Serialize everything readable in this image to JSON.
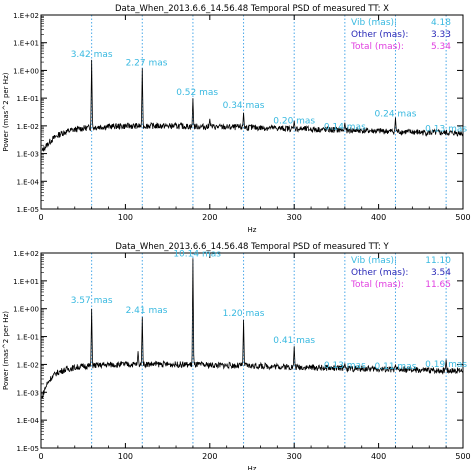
{
  "chart_data": [
    {
      "type": "line",
      "title": "Data_When_2013.6.6_14.56.48 Temporal PSD of measured TT: X",
      "xlabel": "Hz",
      "ylabel": "Power (mas^2 per Hz)",
      "xlim": [
        0,
        500
      ],
      "ylim": [
        1e-05,
        100
      ],
      "yscale": "log",
      "xticks": [
        0,
        100,
        200,
        300,
        400,
        500
      ],
      "xtick_labels": [
        "0",
        "100",
        "200",
        "300",
        "400",
        "500"
      ],
      "yticks": [
        1e-05,
        0.0001,
        0.001,
        0.01,
        0.1,
        1,
        10,
        100
      ],
      "ytick_labels": [
        "1.E-05",
        "1.E-04",
        "1.E-03",
        "1.E-02",
        "1.E-01",
        "1.E+00",
        "1.E+01",
        "1.E+02"
      ],
      "vlines": [
        60,
        120,
        180,
        240,
        300,
        360,
        420,
        480
      ],
      "series": [
        {
          "color": "#000000",
          "baseline": [
            [
              1,
              0.0012
            ],
            [
              4,
              0.0016
            ],
            [
              8,
              0.0022
            ],
            [
              12,
              0.003
            ],
            [
              18,
              0.0042
            ],
            [
              25,
              0.0055
            ],
            [
              35,
              0.0068
            ],
            [
              45,
              0.0078
            ],
            [
              55,
              0.0085
            ],
            [
              65,
              0.009
            ],
            [
              80,
              0.0095
            ],
            [
              100,
              0.0098
            ],
            [
              130,
              0.01
            ],
            [
              160,
              0.0098
            ],
            [
              200,
              0.0092
            ],
            [
              240,
              0.0088
            ],
            [
              280,
              0.0082
            ],
            [
              320,
              0.0075
            ],
            [
              360,
              0.007
            ],
            [
              400,
              0.0065
            ],
            [
              450,
              0.0058
            ],
            [
              500,
              0.0055
            ]
          ],
          "peaks": [
            [
              60,
              2.4
            ],
            [
              120,
              1.2
            ],
            [
              180,
              0.1
            ],
            [
              200,
              0.018
            ],
            [
              240,
              0.03
            ],
            [
              300,
              0.015
            ],
            [
              360,
              0.013
            ],
            [
              420,
              0.02
            ]
          ]
        }
      ],
      "annotations": [
        {
          "text": "3.42 mas",
          "x": 60,
          "y": 3.0
        },
        {
          "text": "2.27 mas",
          "x": 125,
          "y": 1.5
        },
        {
          "text": "0.52 mas",
          "x": 185,
          "y": 0.13
        },
        {
          "text": "0.34 mas",
          "x": 240,
          "y": 0.045
        },
        {
          "text": "0.20 mas",
          "x": 300,
          "y": 0.012
        },
        {
          "text": "0.14 mas",
          "x": 360,
          "y": 0.0075
        },
        {
          "text": "0.24 mas",
          "x": 420,
          "y": 0.022
        },
        {
          "text": "0.13 mas",
          "x": 480,
          "y": 0.0062
        }
      ],
      "legend": [
        {
          "label": "Vib (mas):",
          "value": "4.18",
          "color": "#39b9e0"
        },
        {
          "label": "Other (mas):",
          "value": "3.33",
          "color": "#2a2ab8"
        },
        {
          "label": "Total (mas):",
          "value": "5.34",
          "color": "#e040e0"
        }
      ]
    },
    {
      "type": "line",
      "title": "Data_When_2013.6.6_14.56.48 Temporal PSD of measured TT: Y",
      "xlabel": "Hz",
      "ylabel": "Power (mas^2 per Hz)",
      "xlim": [
        0,
        500
      ],
      "ylim": [
        1e-05,
        100
      ],
      "yscale": "log",
      "xticks": [
        0,
        100,
        200,
        300,
        400,
        500
      ],
      "xtick_labels": [
        "0",
        "100",
        "200",
        "300",
        "400",
        "500"
      ],
      "yticks": [
        1e-05,
        0.0001,
        0.001,
        0.01,
        0.1,
        1,
        10,
        100
      ],
      "ytick_labels": [
        "1.E-05",
        "1.E-04",
        "1.E-03",
        "1.E-02",
        "1.E-01",
        "1.E+00",
        "1.E+01",
        "1.E+02"
      ],
      "vlines": [
        60,
        120,
        180,
        240,
        300,
        360,
        420,
        480
      ],
      "series": [
        {
          "color": "#000000",
          "baseline": [
            [
              1,
              0.0006
            ],
            [
              4,
              0.0012
            ],
            [
              8,
              0.0022
            ],
            [
              12,
              0.0033
            ],
            [
              18,
              0.0048
            ],
            [
              25,
              0.006
            ],
            [
              35,
              0.0072
            ],
            [
              45,
              0.0082
            ],
            [
              55,
              0.0088
            ],
            [
              65,
              0.0092
            ],
            [
              80,
              0.0098
            ],
            [
              100,
              0.01
            ],
            [
              130,
              0.0102
            ],
            [
              160,
              0.01
            ],
            [
              200,
              0.0095
            ],
            [
              240,
              0.009
            ],
            [
              280,
              0.0085
            ],
            [
              320,
              0.0078
            ],
            [
              360,
              0.0072
            ],
            [
              400,
              0.0068
            ],
            [
              450,
              0.0062
            ],
            [
              500,
              0.006
            ]
          ],
          "peaks": [
            [
              60,
              1.0
            ],
            [
              115,
              0.03
            ],
            [
              120,
              0.5
            ],
            [
              180,
              65
            ],
            [
              240,
              0.4
            ],
            [
              300,
              0.045
            ],
            [
              360,
              0.011
            ],
            [
              420,
              0.01
            ],
            [
              480,
              0.015
            ]
          ]
        }
      ],
      "annotations": [
        {
          "text": "3.57 mas",
          "x": 60,
          "y": 1.6
        },
        {
          "text": "2.41 mas",
          "x": 125,
          "y": 0.7
        },
        {
          "text": "10.14 mas",
          "x": 185,
          "y": 75
        },
        {
          "text": "1.20 mas",
          "x": 240,
          "y": 0.55
        },
        {
          "text": "0.41 mas",
          "x": 300,
          "y": 0.06
        },
        {
          "text": "0.13 mas",
          "x": 360,
          "y": 0.0075
        },
        {
          "text": "0.11 mas",
          "x": 420,
          "y": 0.0068
        },
        {
          "text": "0.19 mas",
          "x": 480,
          "y": 0.0082
        }
      ],
      "legend": [
        {
          "label": "Vib (mas):",
          "value": "11.10",
          "color": "#39b9e0"
        },
        {
          "label": "Other (mas):",
          "value": "3.54",
          "color": "#2a2ab8"
        },
        {
          "label": "Total (mas):",
          "value": "11.65",
          "color": "#e040e0"
        }
      ]
    }
  ],
  "colors": {
    "annotation": "#39b9e0",
    "vline": "#4aa8e8",
    "axis": "#000000"
  }
}
